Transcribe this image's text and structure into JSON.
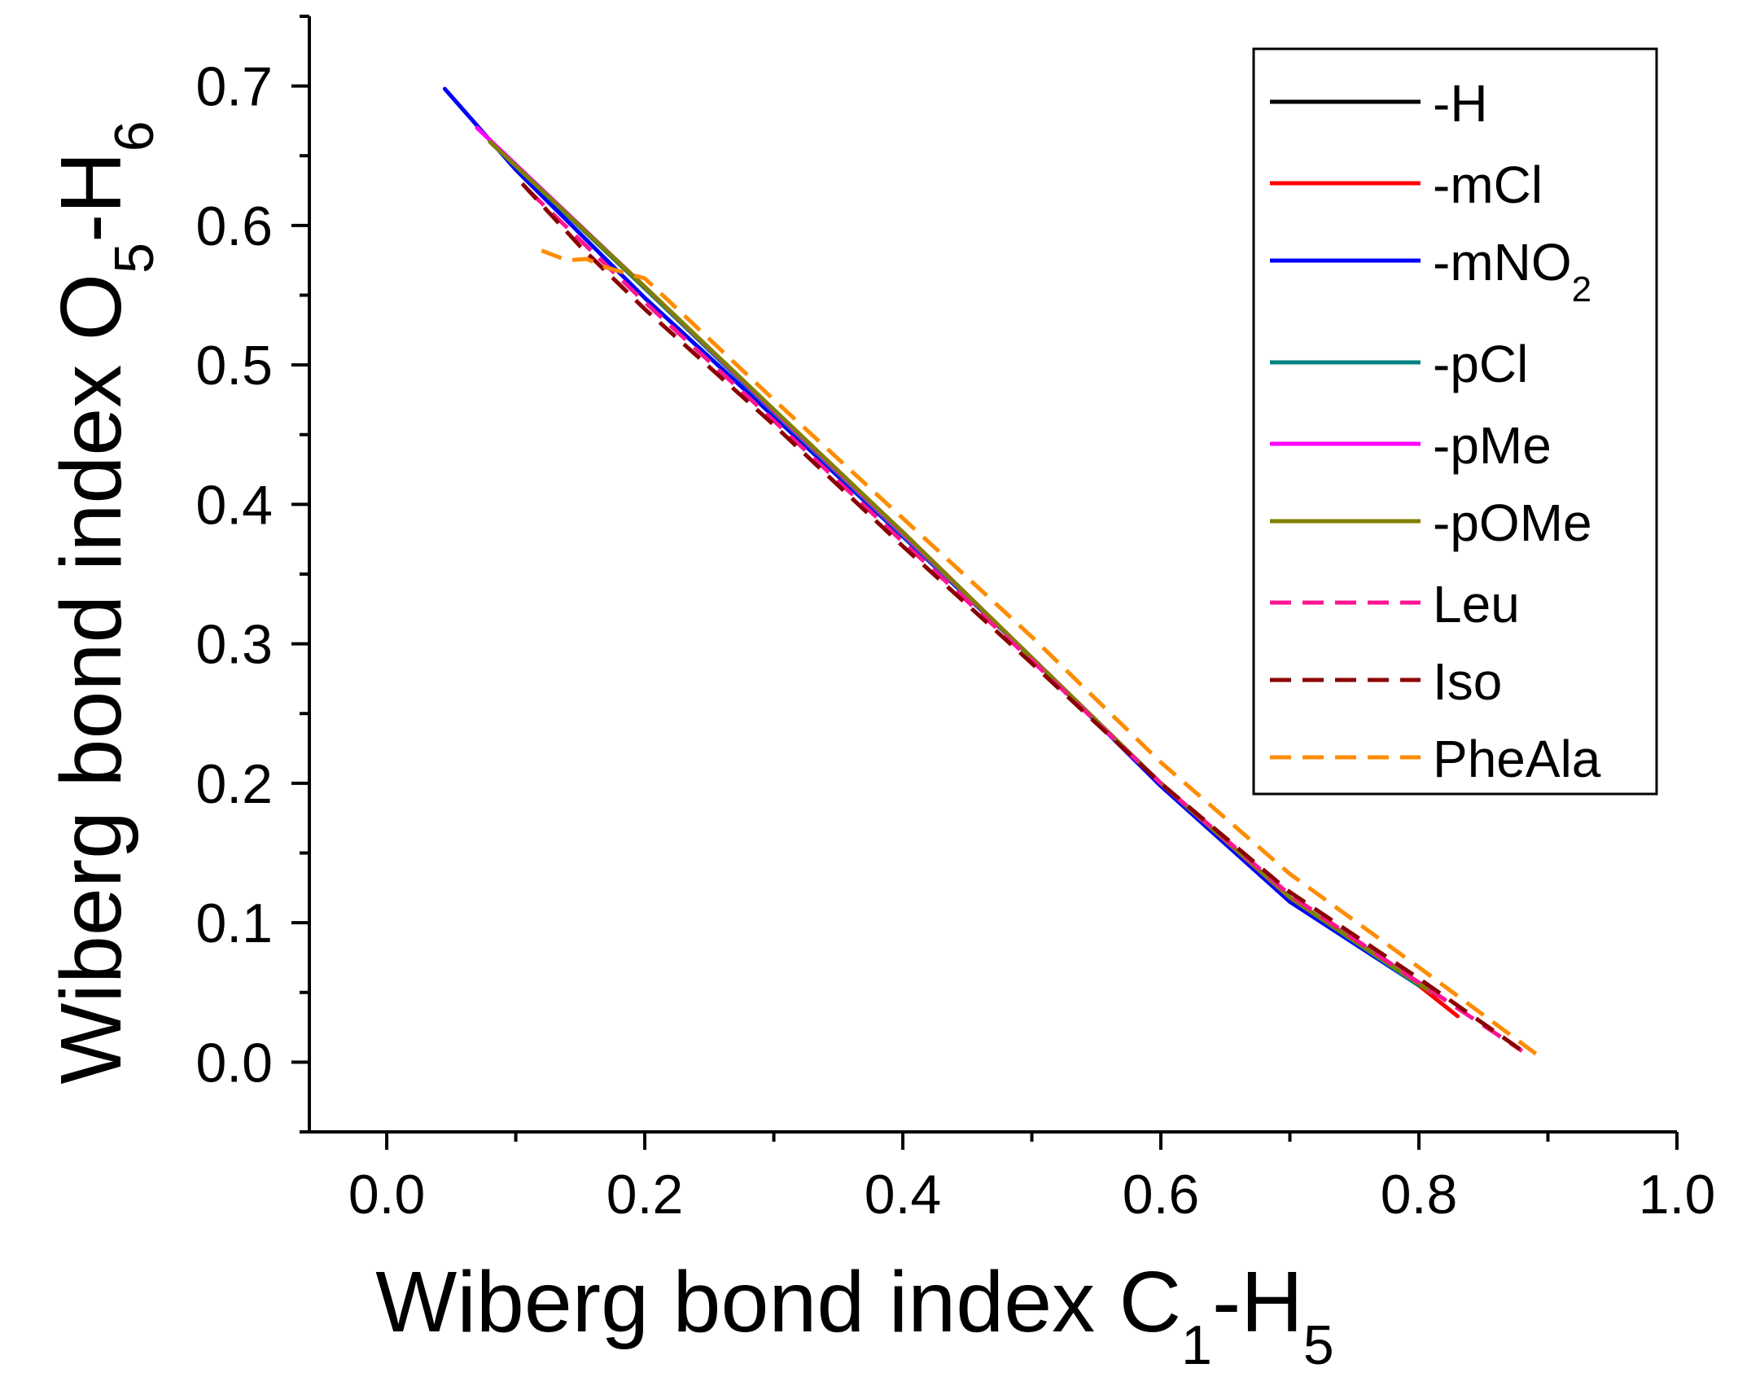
{
  "chart_data": {
    "type": "line",
    "xlabel": {
      "text": "Wiberg bond index C",
      "sub1": "1",
      "mid": "-H",
      "sub2": "5"
    },
    "ylabel": {
      "text": "Wiberg bond index O",
      "sub1": "5",
      "mid": "-H",
      "sub2": "6"
    },
    "xlim": [
      -0.06,
      1.0
    ],
    "ylim": [
      -0.05,
      0.75
    ],
    "xticks": [
      "0.0",
      "0.2",
      "0.4",
      "0.6",
      "0.8",
      "1.0"
    ],
    "xtick_values": [
      0.0,
      0.2,
      0.4,
      0.6,
      0.8,
      1.0
    ],
    "yticks": [
      "0.0",
      "0.1",
      "0.2",
      "0.3",
      "0.4",
      "0.5",
      "0.6",
      "0.7"
    ],
    "ytick_values": [
      0.0,
      0.1,
      0.2,
      0.3,
      0.4,
      0.5,
      0.6,
      0.7
    ],
    "legend_position": "top-right",
    "series": [
      {
        "name": "-H",
        "color": "#000000",
        "dash": "solid",
        "x": [
          0.08,
          0.2,
          0.3,
          0.4,
          0.5,
          0.6,
          0.7,
          0.8
        ],
        "y": [
          0.66,
          0.555,
          0.467,
          0.38,
          0.29,
          0.2,
          0.118,
          0.055
        ]
      },
      {
        "name": "-mCl",
        "color": "#ff0000",
        "dash": "solid",
        "x": [
          0.08,
          0.2,
          0.3,
          0.4,
          0.5,
          0.6,
          0.7,
          0.8,
          0.83
        ],
        "y": [
          0.66,
          0.555,
          0.467,
          0.38,
          0.29,
          0.2,
          0.118,
          0.055,
          0.033
        ]
      },
      {
        "name": "-mNO2",
        "color": "#0000ff",
        "dash": "solid",
        "x": [
          0.045,
          0.1,
          0.2,
          0.3,
          0.4,
          0.5,
          0.6,
          0.7,
          0.8
        ],
        "y": [
          0.698,
          0.64,
          0.548,
          0.463,
          0.377,
          0.29,
          0.198,
          0.115,
          0.055
        ]
      },
      {
        "name": "-pCl",
        "color": "#008080",
        "dash": "solid",
        "x": [
          0.08,
          0.2,
          0.3,
          0.4,
          0.5,
          0.6,
          0.7,
          0.8
        ],
        "y": [
          0.66,
          0.555,
          0.466,
          0.378,
          0.29,
          0.2,
          0.118,
          0.055
        ]
      },
      {
        "name": "-pMe",
        "color": "#ff00ff",
        "dash": "solid",
        "x": [
          0.07,
          0.2,
          0.3,
          0.4,
          0.5,
          0.6,
          0.7,
          0.82
        ],
        "y": [
          0.67,
          0.556,
          0.467,
          0.379,
          0.29,
          0.2,
          0.118,
          0.045
        ]
      },
      {
        "name": "-pOMe",
        "color": "#808000",
        "dash": "solid",
        "x": [
          0.08,
          0.2,
          0.3,
          0.4,
          0.5,
          0.6,
          0.7,
          0.81
        ],
        "y": [
          0.66,
          0.556,
          0.468,
          0.38,
          0.29,
          0.2,
          0.118,
          0.05
        ]
      },
      {
        "name": "Leu",
        "color": "#ff1493",
        "dash": "dashed",
        "x": [
          0.11,
          0.2,
          0.3,
          0.4,
          0.5,
          0.6,
          0.7,
          0.8,
          0.88
        ],
        "y": [
          0.625,
          0.545,
          0.46,
          0.373,
          0.288,
          0.2,
          0.12,
          0.057,
          0.008
        ]
      },
      {
        "name": "Iso",
        "color": "#8b0000",
        "dash": "dashed",
        "x": [
          0.105,
          0.15,
          0.2,
          0.3,
          0.4,
          0.5,
          0.6,
          0.7,
          0.8,
          0.885
        ],
        "y": [
          0.63,
          0.585,
          0.54,
          0.457,
          0.37,
          0.286,
          0.2,
          0.122,
          0.06,
          0.005
        ]
      },
      {
        "name": "PheAla",
        "color": "#ff8c00",
        "dash": "dashed",
        "x": [
          0.12,
          0.14,
          0.155,
          0.17,
          0.2,
          0.3,
          0.4,
          0.5,
          0.6,
          0.7,
          0.8,
          0.895
        ],
        "y": [
          0.582,
          0.575,
          0.576,
          0.57,
          0.562,
          0.475,
          0.39,
          0.305,
          0.215,
          0.135,
          0.068,
          0.003
        ]
      }
    ]
  }
}
